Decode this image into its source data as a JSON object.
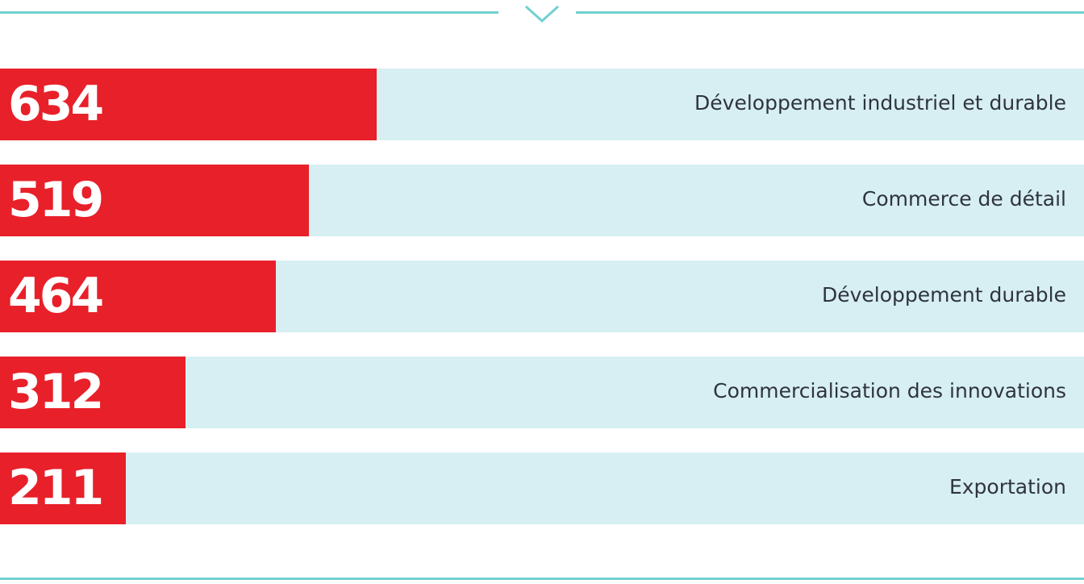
{
  "chart_data": {
    "type": "bar",
    "orientation": "horizontal",
    "categories": [
      "Développement industriel et durable",
      "Commerce de détail",
      "Développement durable",
      "Commercialisation des innovations",
      "Exportation"
    ],
    "values": [
      634,
      519,
      464,
      312,
      211
    ],
    "value_labels": [
      "634",
      "519",
      "464",
      "312",
      "211"
    ],
    "title": "",
    "xlabel": "",
    "ylabel": "",
    "xlim": [
      0,
      1823
    ],
    "grid": false,
    "legend": "none"
  },
  "colors": {
    "bar": "#e8202a",
    "track": "#d7eff2",
    "rule": "#72d0d0",
    "label": "#2f3340",
    "value": "#ffffff"
  },
  "decorations": {
    "divider_icon": "chevron-down-icon"
  }
}
